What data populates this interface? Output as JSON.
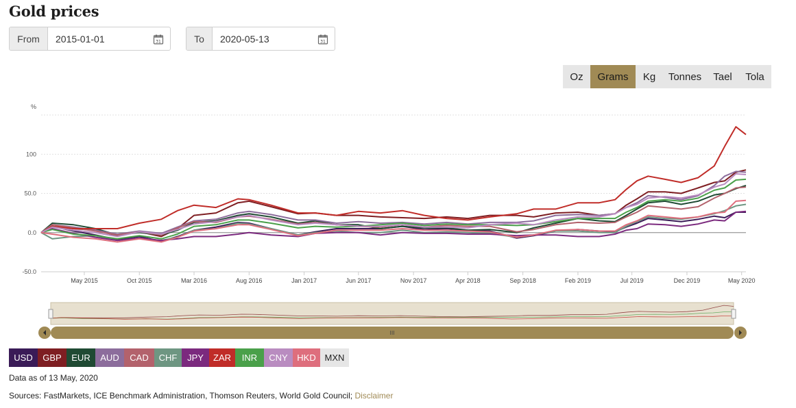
{
  "page": {
    "title": "Gold prices"
  },
  "from": {
    "label": "From",
    "value": "2015-01-01"
  },
  "to": {
    "label": "To",
    "value": "2020-05-13"
  },
  "units": {
    "items": [
      "Oz",
      "Grams",
      "Kg",
      "Tonnes",
      "Tael",
      "Tola"
    ],
    "selected": "Grams",
    "active_color": "#a08a55"
  },
  "currencies": [
    {
      "code": "USD",
      "color": "#3a1b57"
    },
    {
      "code": "GBP",
      "color": "#7e1e22"
    },
    {
      "code": "EUR",
      "color": "#1f4a33"
    },
    {
      "code": "AUD",
      "color": "#8c6d9c"
    },
    {
      "code": "CAD",
      "color": "#b3626c"
    },
    {
      "code": "CHF",
      "color": "#6e9682"
    },
    {
      "code": "JPY",
      "color": "#7b2a7e"
    },
    {
      "code": "ZAR",
      "color": "#c02c28"
    },
    {
      "code": "INR",
      "color": "#4aa04a"
    },
    {
      "code": "CNY",
      "color": "#b98cc0"
    },
    {
      "code": "HKD",
      "color": "#de6e7d"
    },
    {
      "code": "MXN",
      "color": "#e6e6e6"
    }
  ],
  "footer": {
    "data_asof": "Data as of 13 May, 2020",
    "sources": "Sources: FastMarkets, ICE Benchmark Administration, Thomson Reuters, World Gold Council;",
    "disclaimer": "Disclaimer"
  },
  "navigator": {
    "scroll_glyph": "III"
  },
  "chart_data": {
    "type": "line",
    "ylabel": "%",
    "ylim": [
      -50,
      150
    ],
    "yticks": [
      -50,
      0,
      50,
      100
    ],
    "ytick_labels": [
      "-50.0",
      "0.0",
      "50.0",
      "100"
    ],
    "xlim": [
      "2015-01-01",
      "2020-05-13"
    ],
    "xticks": [
      {
        "date": "2015-05-01",
        "label": "May 2015"
      },
      {
        "date": "2015-10-01",
        "label": "Oct 2015"
      },
      {
        "date": "2016-03-01",
        "label": "Mar 2016"
      },
      {
        "date": "2016-08-01",
        "label": "Aug 2016"
      },
      {
        "date": "2017-01-01",
        "label": "Jan 2017"
      },
      {
        "date": "2017-06-01",
        "label": "Jun 2017"
      },
      {
        "date": "2017-11-01",
        "label": "Nov 2017"
      },
      {
        "date": "2018-04-01",
        "label": "Apr 2018"
      },
      {
        "date": "2018-09-01",
        "label": "Sep 2018"
      },
      {
        "date": "2019-02-01",
        "label": "Feb 2019"
      },
      {
        "date": "2019-07-01",
        "label": "Jul 2019"
      },
      {
        "date": "2019-12-01",
        "label": "Dec 2019"
      },
      {
        "date": "2020-05-01",
        "label": "May 2020"
      }
    ],
    "grid": true,
    "dates": [
      "2015-01-01",
      "2015-02-01",
      "2015-04-01",
      "2015-06-01",
      "2015-08-01",
      "2015-10-01",
      "2015-12-01",
      "2016-01-15",
      "2016-03-01",
      "2016-05-01",
      "2016-07-01",
      "2016-08-01",
      "2016-10-01",
      "2016-12-15",
      "2017-02-01",
      "2017-04-01",
      "2017-06-01",
      "2017-08-01",
      "2017-10-01",
      "2017-12-01",
      "2018-02-01",
      "2018-04-01",
      "2018-06-01",
      "2018-08-15",
      "2018-10-01",
      "2018-12-01",
      "2019-02-01",
      "2019-04-01",
      "2019-05-15",
      "2019-06-15",
      "2019-07-15",
      "2019-08-15",
      "2019-10-01",
      "2019-11-15",
      "2020-01-01",
      "2020-02-15",
      "2020-03-15",
      "2020-04-15",
      "2020-05-13"
    ],
    "series": [
      {
        "name": "USD",
        "color": "#3a1b57",
        "values": [
          0,
          8,
          2,
          -3,
          -9,
          -5,
          -11,
          -5,
          3,
          7,
          13,
          12,
          5,
          -3,
          1,
          5,
          5,
          5,
          8,
          4,
          5,
          3,
          2,
          -7,
          -4,
          2,
          4,
          2,
          1,
          7,
          12,
          18,
          16,
          14,
          17,
          21,
          19,
          26,
          26
        ]
      },
      {
        "name": "GBP",
        "color": "#7e1e22",
        "values": [
          0,
          8,
          5,
          3,
          -4,
          1,
          -5,
          5,
          22,
          25,
          38,
          40,
          33,
          24,
          25,
          22,
          22,
          20,
          19,
          18,
          20,
          18,
          22,
          22,
          20,
          25,
          26,
          22,
          24,
          35,
          43,
          52,
          52,
          50,
          57,
          64,
          66,
          77,
          80
        ]
      },
      {
        "name": "EUR",
        "color": "#1f4a33",
        "values": [
          0,
          12,
          10,
          5,
          -3,
          0,
          -3,
          3,
          13,
          15,
          22,
          24,
          20,
          12,
          15,
          10,
          10,
          5,
          8,
          6,
          6,
          3,
          4,
          0,
          6,
          12,
          18,
          15,
          14,
          22,
          30,
          38,
          40,
          36,
          40,
          48,
          50,
          56,
          60
        ]
      },
      {
        "name": "AUD",
        "color": "#8c6d9c",
        "values": [
          0,
          10,
          7,
          3,
          -2,
          2,
          -1,
          7,
          15,
          17,
          25,
          27,
          23,
          16,
          16,
          12,
          14,
          12,
          13,
          11,
          13,
          11,
          13,
          13,
          15,
          22,
          23,
          22,
          24,
          32,
          38,
          47,
          45,
          42,
          47,
          60,
          72,
          78,
          77
        ]
      },
      {
        "name": "CAD",
        "color": "#b3626c",
        "values": [
          0,
          10,
          6,
          2,
          -3,
          1,
          -3,
          6,
          14,
          13,
          20,
          21,
          17,
          11,
          13,
          10,
          8,
          7,
          10,
          7,
          9,
          8,
          8,
          1,
          4,
          10,
          13,
          12,
          13,
          20,
          26,
          34,
          32,
          30,
          33,
          44,
          50,
          57,
          58
        ]
      },
      {
        "name": "CHF",
        "color": "#6e9682",
        "values": [
          0,
          -8,
          -5,
          -4,
          -10,
          -7,
          -10,
          -6,
          3,
          5,
          12,
          11,
          5,
          -3,
          0,
          2,
          0,
          0,
          3,
          0,
          1,
          0,
          -1,
          -6,
          -3,
          2,
          2,
          0,
          0,
          8,
          14,
          20,
          18,
          17,
          20,
          24,
          28,
          34,
          36
        ]
      },
      {
        "name": "JPY",
        "color": "#7b2a7e",
        "values": [
          0,
          5,
          -1,
          -6,
          -10,
          -7,
          -10,
          -8,
          -5,
          -5,
          -2,
          0,
          -3,
          -5,
          -1,
          0,
          0,
          -3,
          0,
          -1,
          -1,
          -2,
          -2,
          -4,
          -3,
          -3,
          -5,
          -5,
          -2,
          3,
          5,
          11,
          10,
          8,
          11,
          16,
          15,
          26,
          27
        ]
      },
      {
        "name": "ZAR",
        "color": "#c02c28",
        "values": [
          0,
          8,
          5,
          5,
          5,
          12,
          17,
          28,
          35,
          32,
          43,
          42,
          35,
          25,
          25,
          22,
          27,
          25,
          28,
          22,
          18,
          16,
          20,
          24,
          30,
          30,
          38,
          38,
          42,
          55,
          66,
          72,
          68,
          64,
          70,
          85,
          110,
          135,
          125
        ]
      },
      {
        "name": "INR",
        "color": "#4aa04a",
        "values": [
          0,
          4,
          -2,
          -4,
          -8,
          -4,
          -8,
          -2,
          8,
          10,
          16,
          16,
          12,
          6,
          8,
          7,
          8,
          10,
          12,
          9,
          11,
          10,
          10,
          9,
          10,
          14,
          18,
          18,
          18,
          26,
          32,
          40,
          42,
          40,
          44,
          54,
          57,
          67,
          68
        ]
      },
      {
        "name": "CNY",
        "color": "#b98cc0",
        "values": [
          0,
          7,
          3,
          0,
          -5,
          1,
          -2,
          4,
          11,
          14,
          20,
          22,
          16,
          10,
          12,
          10,
          8,
          8,
          10,
          7,
          7,
          6,
          10,
          12,
          10,
          16,
          20,
          20,
          24,
          32,
          36,
          44,
          46,
          44,
          48,
          58,
          62,
          75,
          74
        ]
      },
      {
        "name": "HKD",
        "color": "#de6e7d",
        "values": [
          0,
          -2,
          -6,
          -8,
          -12,
          -8,
          -12,
          -6,
          2,
          5,
          10,
          10,
          4,
          -4,
          -1,
          3,
          3,
          3,
          5,
          3,
          3,
          2,
          1,
          -6,
          -3,
          3,
          4,
          2,
          2,
          10,
          15,
          22,
          20,
          18,
          20,
          25,
          26,
          40,
          41
        ]
      }
    ]
  }
}
